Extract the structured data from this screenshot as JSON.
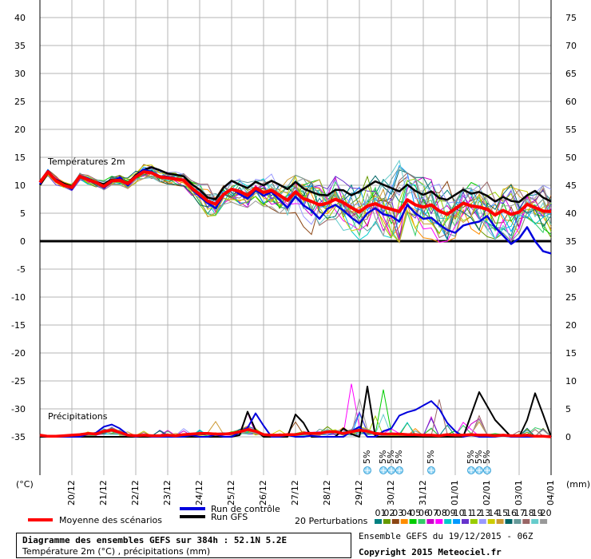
{
  "chart_data": {
    "type": "line",
    "left_axis": {
      "label": "(°C)",
      "ticks": [
        40,
        35,
        30,
        25,
        20,
        15,
        10,
        5,
        0,
        -5,
        -10,
        -15,
        -20,
        -25,
        -30,
        -35
      ],
      "range": [
        -35,
        40
      ]
    },
    "right_axis": {
      "label": "(mm)",
      "ticks": [
        75,
        70,
        65,
        60,
        55,
        50,
        45,
        40,
        35,
        30,
        25,
        20,
        15,
        10,
        5,
        0
      ],
      "range": [
        0,
        75
      ]
    },
    "x_ticks": [
      "20/12",
      "21/12",
      "22/12",
      "23/12",
      "24/12",
      "25/12",
      "26/12",
      "27/12",
      "28/12",
      "29/12",
      "30/12",
      "31/12",
      "01/01",
      "02/01",
      "03/01",
      "04/01"
    ],
    "n_steps": 65,
    "grid": true,
    "temp_label": "Températures 2m",
    "precip_label": "Précipitations",
    "temperature": {
      "mean": [
        10.5,
        12.4,
        10.8,
        10.0,
        9.6,
        11.6,
        11.0,
        10.5,
        9.8,
        10.8,
        10.9,
        10.3,
        11.5,
        12.4,
        12.2,
        11.5,
        11.3,
        11.1,
        10.9,
        9.5,
        8.4,
        7.2,
        6.6,
        8.4,
        9.3,
        8.9,
        8.2,
        9.5,
        8.7,
        9.1,
        8.2,
        7.3,
        8.8,
        7.6,
        7.1,
        6.5,
        6.8,
        7.5,
        6.9,
        6.0,
        5.2,
        6.3,
        6.7,
        6.1,
        5.7,
        5.3,
        7.4,
        6.5,
        6.1,
        6.5,
        5.4,
        4.8,
        5.8,
        6.8,
        6.3,
        6.1,
        5.7,
        4.7,
        5.5,
        4.8,
        5.2,
        6.6,
        6.0,
        5.4,
        5.3
      ],
      "control": [
        10.2,
        12.6,
        10.9,
        10.1,
        9.3,
        11.7,
        11.2,
        10.4,
        9.6,
        10.6,
        11.4,
        10.0,
        11.6,
        12.8,
        12.4,
        11.6,
        11.5,
        11.2,
        11.0,
        9.3,
        8.0,
        6.8,
        5.9,
        8.2,
        9.4,
        8.4,
        7.6,
        9.2,
        8.1,
        8.8,
        7.4,
        6.0,
        8.0,
        6.4,
        5.5,
        4.0,
        5.8,
        6.5,
        5.5,
        4.2,
        3.2,
        5.0,
        5.9,
        4.8,
        4.5,
        3.5,
        6.5,
        5.0,
        4.0,
        4.2,
        3.0,
        2.0,
        1.5,
        2.8,
        3.2,
        3.5,
        4.5,
        2.5,
        1.0,
        -0.5,
        0.5,
        2.5,
        0.0,
        -1.8,
        -2.2
      ],
      "gfs": [
        10.0,
        12.2,
        11.0,
        10.3,
        9.8,
        11.4,
        11.2,
        10.6,
        10.2,
        11.0,
        11.1,
        10.4,
        11.8,
        12.8,
        13.2,
        12.7,
        12.1,
        11.9,
        11.6,
        10.2,
        9.2,
        7.8,
        7.5,
        9.6,
        10.8,
        10.1,
        9.5,
        10.6,
        10.0,
        10.8,
        10.1,
        9.3,
        10.6,
        9.4,
        8.8,
        8.3,
        8.2,
        9.2,
        9.1,
        8.2,
        8.9,
        9.8,
        10.7,
        10.1,
        9.5,
        8.9,
        10.1,
        9.0,
        8.3,
        8.9,
        7.7,
        7.4,
        8.3,
        9.2,
        8.5,
        8.8,
        8.1,
        7.1,
        7.9,
        7.2,
        7.0,
        8.2,
        9.0,
        7.8,
        7.1
      ],
      "lo": [
        9.6,
        11.6,
        10.0,
        9.1,
        8.8,
        10.6,
        10.2,
        9.6,
        8.8,
        9.6,
        10.0,
        9.4,
        10.4,
        11.2,
        11.2,
        10.6,
        10.2,
        10.0,
        9.8,
        8.2,
        6.2,
        3.6,
        4.6,
        6.6,
        7.0,
        6.4,
        6.0,
        7.2,
        6.2,
        5.8,
        5.0,
        3.0,
        4.8,
        2.6,
        1.2,
        0.0,
        2.0,
        2.6,
        1.6,
        0.8,
        0.2,
        1.2,
        2.2,
        1.0,
        0.6,
        -0.2,
        1.6,
        -0.2,
        0.6,
        0.4,
        -0.2,
        0.0,
        0.6,
        1.2,
        0.6,
        0.0,
        0.8,
        0.4,
        0.2,
        -0.4,
        0.4,
        1.6,
        0.4,
        -0.6,
        -0.8
      ],
      "hi": [
        10.8,
        13.0,
        11.6,
        10.6,
        10.2,
        12.2,
        11.8,
        11.2,
        10.8,
        11.6,
        12.0,
        11.8,
        12.8,
        14.4,
        14.0,
        13.2,
        12.8,
        12.6,
        12.6,
        11.0,
        10.2,
        10.2,
        9.8,
        11.4,
        12.6,
        11.8,
        10.6,
        11.8,
        11.4,
        12.0,
        11.6,
        11.2,
        11.8,
        11.2,
        10.6,
        11.0,
        10.0,
        11.6,
        11.2,
        10.4,
        10.4,
        11.6,
        12.6,
        13.2,
        14.2,
        16.0,
        12.2,
        11.4,
        11.4,
        11.0,
        10.2,
        10.8,
        10.2,
        10.6,
        10.6,
        10.4,
        10.6,
        9.6,
        10.2,
        10.2,
        9.2,
        9.6,
        9.8,
        10.0,
        10.0
      ]
    },
    "precipitation": {
      "mean": [
        0.3,
        0.1,
        0.1,
        0.2,
        0.3,
        0.4,
        0.6,
        0.5,
        1.0,
        1.2,
        0.8,
        0.3,
        0.2,
        0.3,
        0.2,
        0.2,
        0.3,
        0.2,
        0.4,
        0.5,
        0.6,
        0.6,
        0.5,
        0.5,
        0.6,
        0.9,
        1.3,
        1.0,
        0.4,
        0.3,
        0.3,
        0.4,
        0.4,
        0.6,
        0.6,
        0.6,
        0.9,
        0.9,
        0.6,
        0.9,
        1.2,
        1.0,
        0.6,
        0.5,
        0.5,
        0.5,
        0.4,
        0.4,
        0.3,
        0.3,
        0.2,
        0.4,
        0.3,
        0.3,
        0.4,
        0.3,
        0.3,
        0.2,
        0.3,
        0.2,
        0.2,
        0.3,
        0.1,
        0.1,
        0.0
      ],
      "control": [
        0.2,
        0.0,
        0.0,
        0.0,
        0.0,
        0.0,
        0.5,
        0.7,
        1.8,
        2.2,
        1.5,
        0.4,
        0.0,
        0.3,
        0.0,
        0.0,
        0.0,
        0.0,
        0.0,
        0.3,
        0.0,
        0.0,
        0.4,
        0.0,
        0.0,
        0.8,
        1.6,
        4.2,
        2.0,
        0.0,
        0.0,
        0.3,
        0.0,
        0.0,
        0.2,
        0.0,
        0.0,
        0.0,
        0.0,
        1.0,
        1.8,
        0.0,
        0.0,
        1.0,
        1.5,
        3.8,
        4.4,
        4.8,
        5.6,
        6.4,
        5.0,
        2.5,
        1.0,
        0.0,
        0.3,
        0.0,
        0.0,
        0.0,
        0.2,
        0.0,
        0.0,
        0.0,
        0.0,
        0.0,
        0.0
      ],
      "gfs": [
        0.0,
        0.0,
        0.0,
        0.0,
        0.0,
        0.0,
        0.0,
        0.0,
        0.0,
        0.0,
        0.0,
        0.0,
        0.0,
        0.0,
        0.0,
        0.0,
        0.0,
        0.0,
        0.0,
        0.0,
        0.0,
        0.0,
        0.0,
        0.0,
        0.0,
        0.3,
        4.5,
        1.2,
        0.0,
        0.0,
        0.0,
        0.0,
        4.0,
        2.5,
        0.0,
        0.0,
        0.0,
        0.0,
        1.5,
        0.5,
        0.0,
        9.0,
        0.0,
        0.0,
        0.0,
        0.0,
        0.0,
        0.0,
        0.0,
        0.0,
        0.0,
        0.0,
        0.0,
        0.0,
        4.0,
        8.0,
        5.5,
        3.0,
        1.5,
        0.0,
        0.0,
        3.0,
        7.8,
        4.0,
        0.0
      ],
      "hi": [
        0.6,
        0.2,
        0.3,
        0.4,
        0.8,
        1.2,
        2.0,
        1.4,
        3.0,
        2.8,
        2.0,
        1.4,
        0.8,
        1.5,
        1.6,
        1.2,
        1.5,
        0.8,
        1.6,
        5.0,
        2.0,
        1.8,
        4.0,
        0.8,
        1.8,
        1.5,
        4.8,
        11.0,
        3.2,
        2.0,
        1.4,
        1.6,
        3.6,
        2.8,
        0.8,
        2.4,
        4.0,
        2.2,
        3.4,
        10.0,
        9.0,
        9.4,
        3.8,
        10.0,
        3.2,
        4.4,
        2.6,
        1.6,
        1.4,
        4.0,
        9.5,
        2.8,
        1.4,
        4.0,
        2.8,
        4.0,
        2.2,
        0.8,
        4.0,
        2.2,
        1.2,
        1.6,
        2.4,
        1.6,
        1.2
      ]
    },
    "snow_markers": {
      "label": "5%",
      "steps": [
        41,
        43,
        44,
        45,
        49,
        54,
        55,
        56
      ]
    },
    "legend": {
      "mean": "Moyenne des scénarios",
      "control": "Run de contrôle",
      "gfs": "Run GFS",
      "perturbations": "20 Perturbations",
      "perturbation_ids": [
        "01",
        "02",
        "03",
        "04",
        "05",
        "06",
        "07",
        "08",
        "09",
        "10",
        "11",
        "12",
        "13",
        "14",
        "15",
        "16",
        "17",
        "18",
        "19",
        "20"
      ]
    },
    "colors": {
      "mean": "#ff0000",
      "control": "#0000dd",
      "gfs": "#000000",
      "perturbations": [
        "#008080",
        "#669900",
        "#8b4513",
        "#ff8c00",
        "#00cc00",
        "#33cc66",
        "#cc00cc",
        "#ff00ff",
        "#00cccc",
        "#0099ff",
        "#6633cc",
        "#99cc00",
        "#9999ff",
        "#cccc00",
        "#cc9933",
        "#006666",
        "#669999",
        "#996666",
        "#66cccc",
        "#999999"
      ]
    }
  },
  "footer": {
    "title": "Diagramme des ensembles GEFS sur 384h : 52.1N 5.2E",
    "subtitle": "Température 2m (°C) , précipitations (mm)",
    "ensemble": "Ensemble GEFS du 19/12/2015 - 06Z",
    "copyright": "Copyright 2015 Meteociel.fr"
  }
}
